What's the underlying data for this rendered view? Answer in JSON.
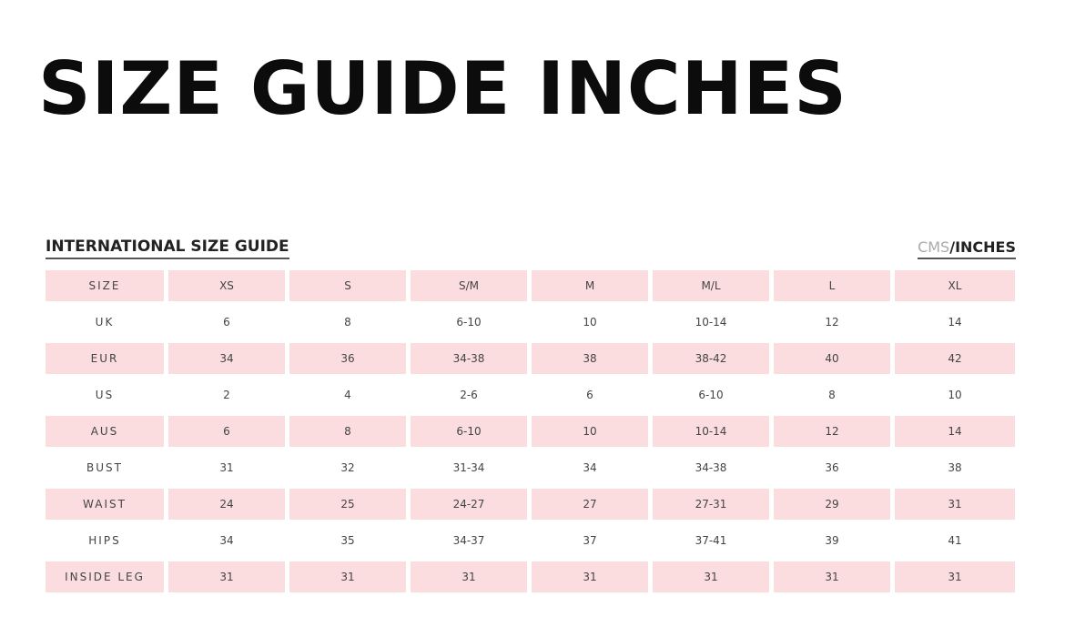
{
  "title": "SIZE GUIDE INCHES",
  "subtitle": "INTERNATIONAL SIZE GUIDE",
  "units": {
    "cms": "CMS",
    "separator": "/",
    "inches": "INCHES"
  },
  "colors": {
    "pink_row": "#fbdde0",
    "text": "#444444"
  },
  "table": {
    "rows": [
      {
        "label": "SIZE",
        "values": [
          "XS",
          "S",
          "S/M",
          "M",
          "M/L",
          "L",
          "XL"
        ]
      },
      {
        "label": "UK",
        "values": [
          "6",
          "8",
          "6-10",
          "10",
          "10-14",
          "12",
          "14"
        ]
      },
      {
        "label": "EUR",
        "values": [
          "34",
          "36",
          "34-38",
          "38",
          "38-42",
          "40",
          "42"
        ]
      },
      {
        "label": "US",
        "values": [
          "2",
          "4",
          "2-6",
          "6",
          "6-10",
          "8",
          "10"
        ]
      },
      {
        "label": "AUS",
        "values": [
          "6",
          "8",
          "6-10",
          "10",
          "10-14",
          "12",
          "14"
        ]
      },
      {
        "label": "BUST",
        "values": [
          "31",
          "32",
          "31-34",
          "34",
          "34-38",
          "36",
          "38"
        ]
      },
      {
        "label": "WAIST",
        "values": [
          "24",
          "25",
          "24-27",
          "27",
          "27-31",
          "29",
          "31"
        ]
      },
      {
        "label": "HIPS",
        "values": [
          "34",
          "35",
          "34-37",
          "37",
          "37-41",
          "39",
          "41"
        ]
      },
      {
        "label": "INSIDE LEG",
        "values": [
          "31",
          "31",
          "31",
          "31",
          "31",
          "31",
          "31"
        ]
      }
    ]
  }
}
